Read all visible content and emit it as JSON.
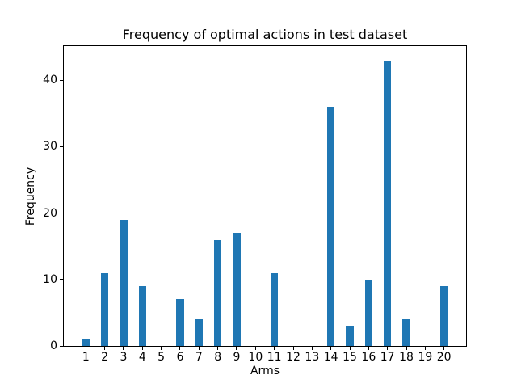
{
  "chart_data": {
    "type": "bar",
    "title": "Frequency of optimal actions in test dataset",
    "xlabel": "Arms",
    "ylabel": "Frequency",
    "categories": [
      "1",
      "2",
      "3",
      "4",
      "5",
      "6",
      "7",
      "8",
      "9",
      "10",
      "11",
      "12",
      "13",
      "14",
      "15",
      "16",
      "17",
      "18",
      "19",
      "20"
    ],
    "values": [
      1,
      11,
      19,
      9,
      0,
      7,
      4,
      16,
      17,
      0,
      11,
      0,
      0,
      36,
      3,
      10,
      43,
      4,
      0,
      9
    ],
    "yticks": [
      0,
      10,
      20,
      30,
      40
    ],
    "ylim": [
      0,
      45.15
    ],
    "xlim": [
      -0.17,
      21.17
    ],
    "bar_width": 0.4,
    "bar_color": "#1f77b4",
    "axis_color": "#000000",
    "background_color": "#ffffff",
    "grid": false,
    "legend": null
  }
}
